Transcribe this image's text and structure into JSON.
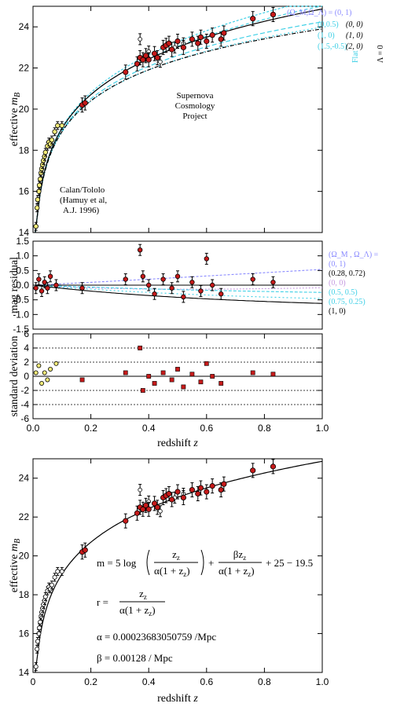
{
  "chart_data": [
    {
      "type": "scatter",
      "panel": "hubble-top",
      "ylabel": "effective m_B",
      "ylabel_main": "effective ",
      "ylabel_ital": "m",
      "ylabel_sub": "B",
      "xlim": [
        0,
        1.0
      ],
      "ylim": [
        14,
        25
      ],
      "yticks": [
        "14",
        "16",
        "18",
        "20",
        "22",
        "24"
      ],
      "annotations": {
        "scp": [
          "Supernova",
          "Cosmology",
          "Project"
        ],
        "calan": [
          "Calan/Tololo",
          "(Hamuy et al,",
          "A.J. 1996)"
        ]
      },
      "legend_header": "(Ω_M,Ω_Λ) = (0, 1)",
      "legend_flat": "Flat",
      "legend_lambda0": "Λ = 0",
      "models": [
        {
          "label": "(0,0.5)",
          "alt": "(0, 0)",
          "om": 0.0,
          "ol": 0.5,
          "color": "#3fd0e6",
          "dash": "4,3"
        },
        {
          "label": "(1, 0)",
          "alt": "(1, 0)",
          "om": 1.0,
          "ol": 0.0,
          "color": "#3fd0e6",
          "dash": "6,3"
        },
        {
          "label": "(1.5,-0.5)",
          "alt": "(2, 0)",
          "om": 1.5,
          "ol": -0.5,
          "color": "#3fd0e6",
          "dash": "2,3"
        }
      ],
      "calan_points": [
        [
          0.01,
          14.3
        ],
        [
          0.014,
          15.2
        ],
        [
          0.016,
          15.6
        ],
        [
          0.02,
          16.0
        ],
        [
          0.022,
          16.3
        ],
        [
          0.025,
          16.6
        ],
        [
          0.028,
          16.9
        ],
        [
          0.03,
          17.1
        ],
        [
          0.033,
          17.3
        ],
        [
          0.036,
          17.5
        ],
        [
          0.04,
          17.7
        ],
        [
          0.043,
          17.9
        ],
        [
          0.05,
          18.2
        ],
        [
          0.055,
          18.4
        ],
        [
          0.06,
          18.3
        ],
        [
          0.065,
          18.5
        ],
        [
          0.075,
          18.9
        ],
        [
          0.085,
          19.2
        ],
        [
          0.1,
          19.2
        ]
      ],
      "scp_points": [
        [
          0.17,
          20.2
        ],
        [
          0.18,
          20.3
        ],
        [
          0.32,
          21.8
        ],
        [
          0.36,
          22.2
        ],
        [
          0.37,
          22.5
        ],
        [
          0.38,
          22.4
        ],
        [
          0.39,
          22.6
        ],
        [
          0.4,
          22.4
        ],
        [
          0.42,
          22.7
        ],
        [
          0.43,
          22.5
        ],
        [
          0.45,
          23.0
        ],
        [
          0.46,
          23.1
        ],
        [
          0.47,
          23.2
        ],
        [
          0.48,
          22.9
        ],
        [
          0.5,
          23.3
        ],
        [
          0.52,
          23.0
        ],
        [
          0.55,
          23.4
        ],
        [
          0.57,
          23.2
        ],
        [
          0.58,
          23.5
        ],
        [
          0.6,
          23.3
        ],
        [
          0.62,
          23.6
        ],
        [
          0.65,
          23.4
        ],
        [
          0.66,
          23.7
        ],
        [
          0.76,
          24.4
        ],
        [
          0.83,
          24.6
        ]
      ],
      "open_points": [
        [
          0.37,
          23.4
        ],
        [
          0.4,
          22.8
        ],
        [
          0.44,
          22.3
        ],
        [
          0.49,
          23.0
        ],
        [
          0.52,
          23.2
        ]
      ]
    },
    {
      "type": "scatter",
      "panel": "residual",
      "ylabel": "mag residual",
      "xlim": [
        0,
        1.0
      ],
      "ylim": [
        -1.5,
        1.5
      ],
      "yticks": [
        "-1.5",
        "-1.0",
        "-0.5",
        "0.0",
        "0.5",
        "1.0",
        "1.5"
      ],
      "legend": [
        {
          "text": "(Ω_M , Ω_Λ) =",
          "color": "#8a8aff"
        },
        {
          "text": "(0, 1)",
          "color": "#8a8aff"
        },
        {
          "text": "(0.28, 0.72)",
          "color": "#000000"
        },
        {
          "text": "(0, 0)",
          "color": "#c59ae0"
        },
        {
          "text": "(0.5, 0.5)",
          "color": "#3fd0e6"
        },
        {
          "text": "(0.75, 0.25)",
          "color": "#3fd0e6"
        },
        {
          "text": "(1, 0)",
          "color": "#000000"
        }
      ],
      "points": [
        [
          0.01,
          -0.1
        ],
        [
          0.02,
          0.2
        ],
        [
          0.03,
          -0.2
        ],
        [
          0.04,
          0.1
        ],
        [
          0.05,
          -0.1
        ],
        [
          0.06,
          0.3
        ],
        [
          0.08,
          0.0
        ],
        [
          0.17,
          -0.1
        ],
        [
          0.32,
          0.2
        ],
        [
          0.37,
          1.2
        ],
        [
          0.38,
          0.3
        ],
        [
          0.4,
          0.0
        ],
        [
          0.42,
          -0.3
        ],
        [
          0.45,
          0.2
        ],
        [
          0.48,
          -0.1
        ],
        [
          0.5,
          0.3
        ],
        [
          0.52,
          -0.4
        ],
        [
          0.55,
          0.1
        ],
        [
          0.58,
          -0.2
        ],
        [
          0.6,
          0.9
        ],
        [
          0.62,
          0.0
        ],
        [
          0.65,
          -0.3
        ],
        [
          0.76,
          0.2
        ],
        [
          0.83,
          0.1
        ]
      ]
    },
    {
      "type": "scatter",
      "panel": "stddev",
      "ylabel": "standard deviation",
      "xlabel": "redshift z",
      "xlabel_main": "redshift ",
      "xlabel_ital": "z",
      "xlim": [
        0,
        1.0
      ],
      "ylim": [
        -6,
        6
      ],
      "yticks": [
        "-6",
        "-4",
        "-2",
        "0",
        "2",
        "4",
        "6"
      ],
      "xticks": [
        "0.0",
        "0.2",
        "0.4",
        "0.6",
        "0.8",
        "1.0"
      ],
      "points": [
        [
          0.01,
          0.5
        ],
        [
          0.02,
          1.5
        ],
        [
          0.03,
          -1.0
        ],
        [
          0.04,
          0.5
        ],
        [
          0.05,
          -0.5
        ],
        [
          0.06,
          1.0
        ],
        [
          0.08,
          1.8
        ],
        [
          0.17,
          -0.5
        ],
        [
          0.32,
          0.5
        ],
        [
          0.37,
          4.0
        ],
        [
          0.38,
          -2.0
        ],
        [
          0.4,
          0.0
        ],
        [
          0.42,
          -1.0
        ],
        [
          0.45,
          0.5
        ],
        [
          0.48,
          -0.5
        ],
        [
          0.5,
          1.0
        ],
        [
          0.52,
          -1.5
        ],
        [
          0.55,
          0.3
        ],
        [
          0.58,
          -0.8
        ],
        [
          0.6,
          1.8
        ],
        [
          0.62,
          0.0
        ],
        [
          0.65,
          -1.0
        ],
        [
          0.76,
          0.5
        ],
        [
          0.83,
          0.3
        ]
      ]
    },
    {
      "type": "scatter",
      "panel": "hubble-fit",
      "ylabel": "effective m_B",
      "ylabel_main": "effective ",
      "ylabel_ital": "m",
      "ylabel_sub": "B",
      "xlabel": "redshift z",
      "xlabel_main": "redshift ",
      "xlabel_ital": "z",
      "xlim": [
        0,
        1.0
      ],
      "ylim": [
        14,
        25
      ],
      "yticks": [
        "14",
        "16",
        "18",
        "20",
        "22",
        "24"
      ],
      "xticks": [
        "0",
        "0.2",
        "0.4",
        "0.6",
        "0.8",
        "1.0"
      ],
      "equation": {
        "m_lhs": "m = 5 log",
        "z_sub": "z",
        "zz": "z",
        "alpha": "α",
        "beta_z": "βz",
        "one_plus": "(1 + z",
        "close": ")",
        "const_tail": "+ 25 − 19.5",
        "r_lhs": "r =",
        "alpha_val": "α = 0.00023683050759 /Mpc",
        "beta_val": "β = 0.00128 / Mpc"
      }
    }
  ]
}
